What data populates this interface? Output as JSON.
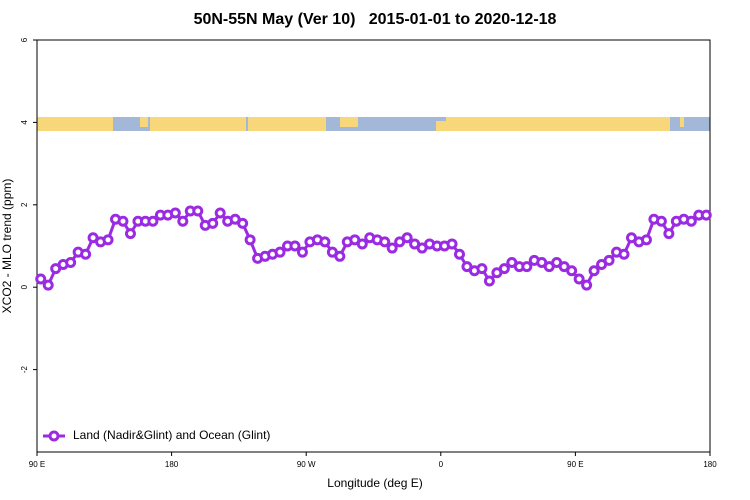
{
  "chart_data": {
    "type": "line",
    "title": "50N-55N May (Ver 10)   2015-01-01 to 2020-12-18",
    "xlabel": "Longitude (deg E)",
    "ylabel": "XCO2 - MLO trend (ppm)",
    "xlim": [
      90,
      540
    ],
    "ylim": [
      -4,
      6
    ],
    "xticks": [
      {
        "value": 90,
        "label": "90 E"
      },
      180,
      {
        "value": 270,
        "label": "90 W"
      },
      {
        "value": 360,
        "label": "0"
      },
      {
        "value": 450,
        "label": "90 E"
      },
      {
        "value": 540,
        "label": "180"
      }
    ],
    "yticks": [
      -2,
      0,
      2,
      4,
      6
    ],
    "legend": "bottom-left",
    "x": [
      92.5,
      97.5,
      102.5,
      107.5,
      112.5,
      117.5,
      122.5,
      127.5,
      132.5,
      137.5,
      142.5,
      147.5,
      152.5,
      157.5,
      162.5,
      167.5,
      172.5,
      177.5,
      182.5,
      187.5,
      192.5,
      197.5,
      202.5,
      207.5,
      212.5,
      217.5,
      222.5,
      227.5,
      232.5,
      237.5,
      242.5,
      247.5,
      252.5,
      257.5,
      262.5,
      267.5,
      272.5,
      277.5,
      282.5,
      287.5,
      292.5,
      297.5,
      302.5,
      307.5,
      312.5,
      317.5,
      322.5,
      327.5,
      332.5,
      337.5,
      342.5,
      347.5,
      352.5,
      357.5,
      362.5,
      367.5,
      372.5,
      377.5,
      382.5,
      387.5,
      392.5,
      397.5,
      402.5,
      407.5,
      412.5,
      417.5,
      422.5,
      427.5,
      432.5,
      437.5,
      442.5,
      447.5,
      452.5,
      457.5,
      462.5,
      467.5,
      472.5,
      477.5,
      482.5,
      487.5,
      492.5,
      497.5,
      502.5,
      507.5,
      512.5,
      517.5,
      522.5,
      527.5,
      532.5,
      537.5
    ],
    "series": [
      {
        "name": "Land (Nadir&Glint) and Ocean (Glint)",
        "color": "#9a2be2",
        "values": [
          0.2,
          0.05,
          0.45,
          0.55,
          0.6,
          0.85,
          0.8,
          1.2,
          1.1,
          1.15,
          1.65,
          1.6,
          1.3,
          1.6,
          1.6,
          1.6,
          1.75,
          1.75,
          1.8,
          1.6,
          1.85,
          1.85,
          1.5,
          1.55,
          1.8,
          1.6,
          1.65,
          1.55,
          1.15,
          0.7,
          0.75,
          0.8,
          0.85,
          1.0,
          1.0,
          0.85,
          1.1,
          1.15,
          1.1,
          0.85,
          0.75,
          1.1,
          1.15,
          1.05,
          1.2,
          1.15,
          1.1,
          0.95,
          1.1,
          1.2,
          1.05,
          0.95,
          1.05,
          1.0,
          1.0,
          1.05,
          0.8,
          0.5,
          0.4,
          0.45,
          0.15,
          0.35,
          0.45,
          0.6,
          0.5,
          0.5,
          0.65,
          0.6,
          0.5,
          0.6,
          0.5,
          0.4,
          0.2,
          0.05,
          0.4,
          0.55,
          0.65,
          0.85,
          0.8,
          1.2,
          1.1,
          1.15,
          1.65,
          1.6,
          1.3,
          1.6,
          1.65,
          1.6,
          1.75,
          1.75
        ]
      }
    ]
  }
}
